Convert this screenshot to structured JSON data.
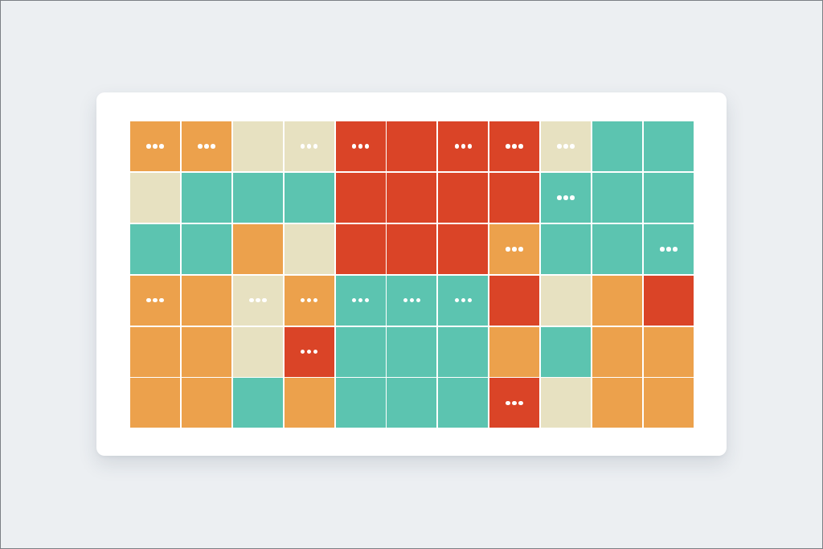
{
  "palette": {
    "O": "#eca14c",
    "B": "#e7e1c1",
    "R": "#da4427",
    "T": "#5cc4b0"
  },
  "grid": {
    "rows": [
      [
        "O",
        "O",
        "B",
        "B",
        "R",
        "R",
        "R",
        "R",
        "B",
        "T",
        "T"
      ],
      [
        "B",
        "T",
        "T",
        "T",
        "R",
        "R",
        "R",
        "R",
        "T",
        "T",
        "T"
      ],
      [
        "T",
        "T",
        "O",
        "B",
        "R",
        "R",
        "R",
        "O",
        "T",
        "T",
        "T"
      ],
      [
        "O",
        "O",
        "B",
        "O",
        "T",
        "T",
        "T",
        "R",
        "B",
        "O",
        "R"
      ],
      [
        "O",
        "O",
        "B",
        "R",
        "T",
        "T",
        "T",
        "O",
        "T",
        "O",
        "O"
      ],
      [
        "O",
        "O",
        "T",
        "O",
        "T",
        "T",
        "T",
        "R",
        "B",
        "O",
        "O"
      ]
    ],
    "menu_cells": [
      [
        true,
        true,
        false,
        true,
        true,
        false,
        true,
        true,
        true,
        false,
        false
      ],
      [
        false,
        false,
        false,
        false,
        false,
        false,
        false,
        false,
        true,
        false,
        false
      ],
      [
        false,
        false,
        false,
        false,
        false,
        false,
        false,
        true,
        false,
        false,
        true
      ],
      [
        true,
        false,
        true,
        true,
        true,
        true,
        true,
        false,
        false,
        false,
        false
      ],
      [
        false,
        false,
        false,
        true,
        false,
        false,
        false,
        false,
        false,
        false,
        false
      ],
      [
        false,
        false,
        false,
        false,
        false,
        false,
        false,
        true,
        false,
        false,
        false
      ]
    ],
    "menu_icon": "more-horizontal-icon"
  }
}
